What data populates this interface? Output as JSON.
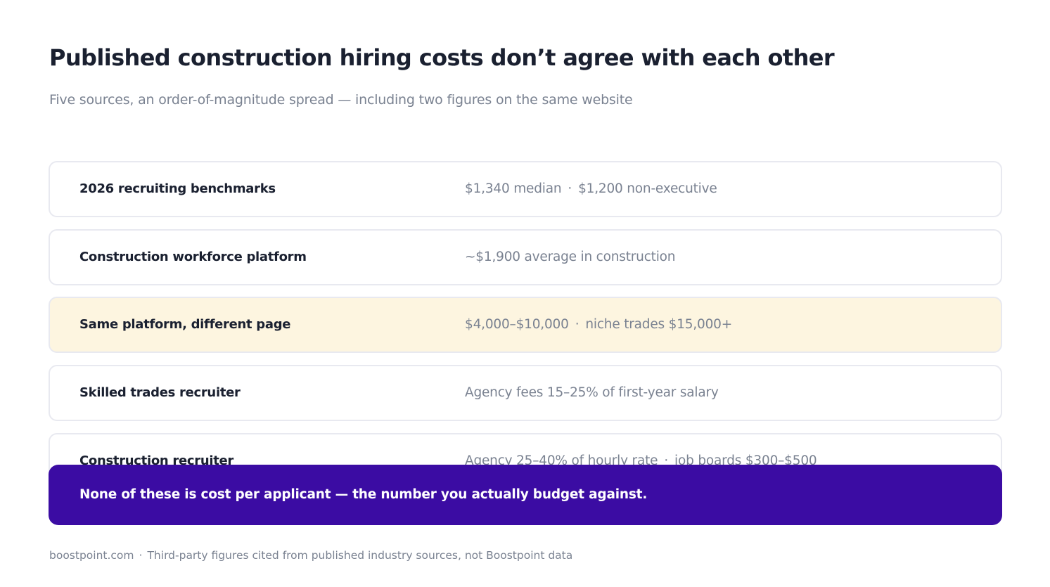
{
  "title": "Published construction hiring costs don’t agree with each other",
  "subtitle": "Five sources, an order-of-magnitude spread — including two figures on the same website",
  "separator": "·",
  "rows": [
    {
      "label": "2026 recruiting benchmarks",
      "values": [
        "$1,340 median",
        "$1,200 non-executive"
      ],
      "highlighted": false
    },
    {
      "label": "Construction workforce platform",
      "values": [
        "~$1,900 average in construction"
      ],
      "highlighted": false
    },
    {
      "label": "Same platform, different page",
      "values": [
        "$4,000–$10,000",
        "niche trades $15,000+"
      ],
      "highlighted": true
    },
    {
      "label": "Skilled trades recruiter",
      "values": [
        "Agency fees 15–25% of first-year salary"
      ],
      "highlighted": false
    },
    {
      "label": "Construction recruiter",
      "values": [
        "Agency 25–40% of hourly rate",
        "job boards $300–$500"
      ],
      "highlighted": false
    }
  ],
  "callout": "None of these is cost per applicant — the number you actually budget against.",
  "footer": {
    "site": "boostpoint.com",
    "note": "Third-party figures cited from published industry sources, not Boostpoint data"
  },
  "colors": {
    "title": "#1a2030",
    "muted": "#7a8291",
    "highlight_row": "#fdf5e0",
    "callout_bg": "#3b0ca3"
  }
}
